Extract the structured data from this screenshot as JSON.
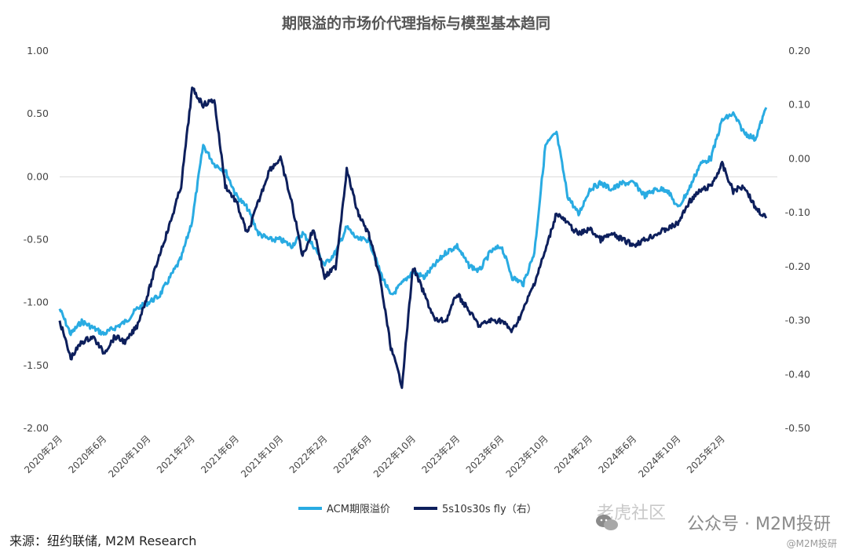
{
  "chart_data": {
    "type": "line",
    "title": "期限溢的市场价代理指标与模型基本趋同",
    "left_axis": {
      "min": -2.0,
      "max": 1.0,
      "ticks": [
        "1.00",
        "0.50",
        "0.00",
        "-0.50",
        "-1.00",
        "-1.50",
        "-2.00"
      ]
    },
    "right_axis": {
      "min": -0.5,
      "max": 0.2,
      "ticks": [
        "0.20",
        "0.10",
        "0.00",
        "-0.10",
        "-0.20",
        "-0.30",
        "-0.40",
        "-0.50"
      ]
    },
    "x_range": [
      "2020-02",
      "2025-07"
    ],
    "x_ticks": [
      "2020年2月",
      "2020年6月",
      "2020年10月",
      "2021年2月",
      "2021年6月",
      "2021年10月",
      "2022年2月",
      "2022年6月",
      "2022年10月",
      "2023年2月",
      "2023年6月",
      "2023年10月",
      "2024年2月",
      "2024年6月",
      "2024年10月",
      "2025年2月"
    ],
    "legend_position": "bottom-center",
    "series": [
      {
        "name": "ACM期限溢价",
        "axis": "left",
        "color": "#29abe2",
        "x": [
          "2020-02",
          "2020-03",
          "2020-04",
          "2020-05",
          "2020-06",
          "2020-07",
          "2020-08",
          "2020-09",
          "2020-10",
          "2020-11",
          "2020-12",
          "2021-01",
          "2021-02",
          "2021-03",
          "2021-04",
          "2021-05",
          "2021-06",
          "2021-07",
          "2021-08",
          "2021-09",
          "2021-10",
          "2021-11",
          "2021-12",
          "2022-01",
          "2022-02",
          "2022-03",
          "2022-04",
          "2022-05",
          "2022-06",
          "2022-07",
          "2022-08",
          "2022-09",
          "2022-10",
          "2022-11",
          "2022-12",
          "2023-01",
          "2023-02",
          "2023-03",
          "2023-04",
          "2023-05",
          "2023-06",
          "2023-07",
          "2023-08",
          "2023-09",
          "2023-10",
          "2023-11",
          "2023-12",
          "2024-01",
          "2024-02",
          "2024-03",
          "2024-04",
          "2024-05",
          "2024-06",
          "2024-07",
          "2024-08",
          "2024-09",
          "2024-10",
          "2024-11",
          "2024-12",
          "2025-01",
          "2025-02",
          "2025-03",
          "2025-04",
          "2025-05",
          "2025-06"
        ],
        "values": [
          -1.05,
          -1.25,
          -1.15,
          -1.2,
          -1.25,
          -1.2,
          -1.15,
          -1.05,
          -1.0,
          -0.95,
          -0.8,
          -0.65,
          -0.35,
          0.25,
          0.1,
          0.05,
          -0.15,
          -0.25,
          -0.45,
          -0.5,
          -0.5,
          -0.55,
          -0.45,
          -0.55,
          -0.7,
          -0.6,
          -0.4,
          -0.5,
          -0.5,
          -0.75,
          -0.95,
          -0.85,
          -0.75,
          -0.8,
          -0.7,
          -0.6,
          -0.55,
          -0.7,
          -0.75,
          -0.6,
          -0.55,
          -0.8,
          -0.85,
          -0.6,
          0.25,
          0.35,
          -0.15,
          -0.3,
          -0.1,
          -0.05,
          -0.1,
          -0.05,
          -0.05,
          -0.15,
          -0.1,
          -0.1,
          -0.25,
          -0.1,
          0.1,
          0.15,
          0.45,
          0.5,
          0.35,
          0.3,
          0.55
        ]
      },
      {
        "name": "5s10s30s fly（右）",
        "axis": "right",
        "color": "#0d1f5c",
        "x": [
          "2020-02",
          "2020-03",
          "2020-04",
          "2020-05",
          "2020-06",
          "2020-07",
          "2020-08",
          "2020-09",
          "2020-10",
          "2020-11",
          "2020-12",
          "2021-01",
          "2021-02",
          "2021-03",
          "2021-04",
          "2021-05",
          "2021-06",
          "2021-07",
          "2021-08",
          "2021-09",
          "2021-10",
          "2021-11",
          "2021-12",
          "2022-01",
          "2022-02",
          "2022-03",
          "2022-04",
          "2022-05",
          "2022-06",
          "2022-07",
          "2022-08",
          "2022-09",
          "2022-10",
          "2022-11",
          "2022-12",
          "2023-01",
          "2023-02",
          "2023-03",
          "2023-04",
          "2023-05",
          "2023-06",
          "2023-07",
          "2023-08",
          "2023-09",
          "2023-10",
          "2023-11",
          "2023-12",
          "2024-01",
          "2024-02",
          "2024-03",
          "2024-04",
          "2024-05",
          "2024-06",
          "2024-07",
          "2024-08",
          "2024-09",
          "2024-10",
          "2024-11",
          "2024-12",
          "2025-01",
          "2025-02",
          "2025-03",
          "2025-04",
          "2025-05",
          "2025-06"
        ],
        "values": [
          -0.3,
          -0.37,
          -0.34,
          -0.33,
          -0.36,
          -0.33,
          -0.34,
          -0.31,
          -0.25,
          -0.18,
          -0.12,
          -0.05,
          0.13,
          0.1,
          0.11,
          -0.05,
          -0.08,
          -0.14,
          -0.08,
          -0.02,
          0.0,
          -0.08,
          -0.18,
          -0.13,
          -0.22,
          -0.2,
          -0.02,
          -0.1,
          -0.14,
          -0.22,
          -0.35,
          -0.42,
          -0.2,
          -0.25,
          -0.3,
          -0.3,
          -0.25,
          -0.28,
          -0.31,
          -0.3,
          -0.3,
          -0.32,
          -0.28,
          -0.23,
          -0.17,
          -0.1,
          -0.12,
          -0.14,
          -0.13,
          -0.15,
          -0.14,
          -0.15,
          -0.16,
          -0.15,
          -0.14,
          -0.13,
          -0.12,
          -0.08,
          -0.06,
          -0.05,
          -0.01,
          -0.06,
          -0.05,
          -0.09,
          -0.11
        ]
      }
    ]
  },
  "source_text": "来源：纽约联储, M2M Research",
  "watermark": {
    "faint_text": "老虎社区",
    "main_text": "公众号 · M2M投研",
    "small_text": "@M2M投研"
  }
}
